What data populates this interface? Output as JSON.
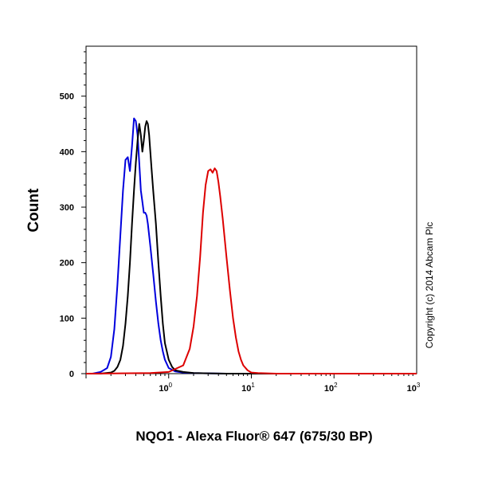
{
  "chart_data": {
    "type": "line",
    "xlabel": "NQO1 - Alexa Fluor® 647 (675/30 BP)",
    "ylabel": "Count",
    "x_scale": "log",
    "xlim": [
      0.1,
      1000
    ],
    "ylim": [
      0,
      590
    ],
    "y_ticks": [
      "0",
      "100",
      "200",
      "300",
      "400",
      "500"
    ],
    "x_ticks": [
      {
        "base": "10",
        "exp": "0"
      },
      {
        "base": "10",
        "exp": "1"
      },
      {
        "base": "10",
        "exp": "2"
      },
      {
        "base": "10",
        "exp": "3"
      }
    ],
    "annotation": "Copyright (c) 2014 Abcam Plc",
    "series": [
      {
        "color": "#0000dd",
        "x": [
          0.1,
          0.12,
          0.15,
          0.18,
          0.2,
          0.22,
          0.24,
          0.26,
          0.28,
          0.3,
          0.32,
          0.34,
          0.36,
          0.38,
          0.4,
          0.42,
          0.44,
          0.46,
          0.48,
          0.5,
          0.52,
          0.54,
          0.56,
          0.6,
          0.65,
          0.7,
          0.75,
          0.8,
          0.85,
          0.9,
          1.0,
          1.2,
          1.5,
          2.0,
          5.0,
          1000
        ],
        "y": [
          0,
          0,
          3,
          10,
          30,
          80,
          160,
          250,
          330,
          385,
          390,
          365,
          410,
          460,
          455,
          430,
          380,
          330,
          310,
          290,
          290,
          285,
          270,
          230,
          180,
          130,
          90,
          60,
          40,
          25,
          10,
          4,
          2,
          1,
          0,
          0
        ]
      },
      {
        "color": "#000000",
        "x": [
          0.1,
          0.15,
          0.2,
          0.22,
          0.24,
          0.26,
          0.28,
          0.3,
          0.32,
          0.34,
          0.36,
          0.38,
          0.4,
          0.42,
          0.44,
          0.46,
          0.48,
          0.5,
          0.52,
          0.54,
          0.56,
          0.58,
          0.6,
          0.62,
          0.65,
          0.7,
          0.75,
          0.8,
          0.85,
          0.9,
          1.0,
          1.1,
          1.2,
          1.5,
          2.0,
          5.0,
          1000
        ],
        "y": [
          0,
          0,
          2,
          5,
          12,
          25,
          50,
          90,
          140,
          200,
          270,
          330,
          380,
          420,
          450,
          430,
          400,
          420,
          445,
          455,
          450,
          430,
          400,
          370,
          330,
          270,
          200,
          140,
          90,
          55,
          25,
          12,
          6,
          3,
          1,
          0,
          0
        ]
      },
      {
        "color": "#dd0000",
        "x": [
          0.1,
          0.6,
          1.0,
          1.5,
          1.8,
          2.0,
          2.2,
          2.4,
          2.6,
          2.8,
          3.0,
          3.2,
          3.4,
          3.6,
          3.8,
          4.0,
          4.2,
          4.5,
          5.0,
          5.5,
          6.0,
          6.5,
          7.0,
          7.5,
          8.0,
          9.0,
          10.0,
          12.0,
          20.0,
          1000
        ],
        "y": [
          0,
          1,
          3,
          15,
          45,
          85,
          140,
          210,
          290,
          340,
          365,
          368,
          362,
          370,
          365,
          345,
          320,
          280,
          210,
          150,
          100,
          65,
          40,
          25,
          15,
          6,
          2,
          1,
          0,
          0
        ]
      }
    ]
  }
}
